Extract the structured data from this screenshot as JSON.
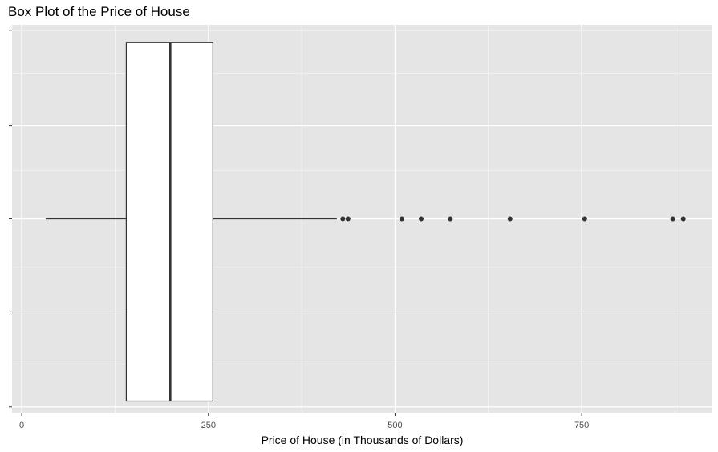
{
  "chart_data": {
    "type": "boxplot",
    "title": "Box Plot of the Price of House",
    "xlabel": "Price of House (in Thousands of Dollars)",
    "ylabel": "",
    "orientation": "horizontal",
    "xlim": [
      -13,
      925
    ],
    "x_ticks": [
      0,
      250,
      500,
      750
    ],
    "x_tick_labels": [
      "0",
      "250",
      "500",
      "750"
    ],
    "grid": true,
    "colors": {
      "panel_background": "#e5e5e5",
      "grid": "#ffffff",
      "box_fill": "#ffffff",
      "box_line": "#333333",
      "outlier": "#333333"
    },
    "box": {
      "min": 32,
      "q1": 140,
      "median": 199,
      "q3": 256,
      "max": 422,
      "outliers": [
        430,
        437,
        509,
        535,
        574,
        654,
        754,
        872,
        886
      ]
    }
  }
}
